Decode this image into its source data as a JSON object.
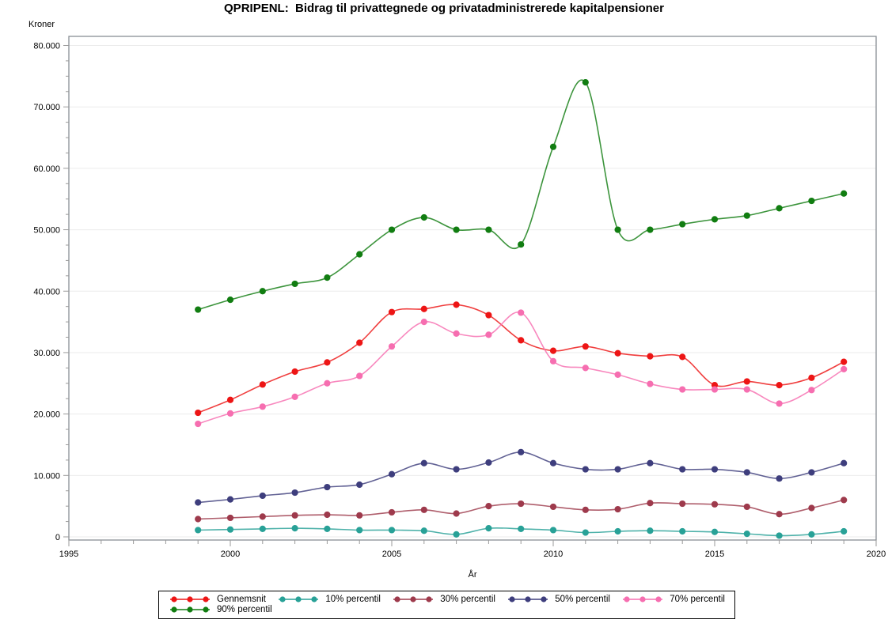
{
  "title": "QPRIPENL:  Bidrag til privattegnede og privatadministrerede kapitalpensioner",
  "chart_data": {
    "type": "line",
    "title": "QPRIPENL:  Bidrag til privattegnede og privatadministrerede kapitalpensioner",
    "ylabel": "Kroner",
    "xlabel": "År",
    "xlim": [
      1995,
      2020
    ],
    "ylim": [
      0,
      80000
    ],
    "xtick_values": [
      1995,
      2000,
      2005,
      2010,
      2015,
      2020
    ],
    "xtick_labels": [
      "1995",
      "2000",
      "2005",
      "2010",
      "2015",
      "2020"
    ],
    "ytick_values": [
      0,
      10000,
      20000,
      30000,
      40000,
      50000,
      60000,
      70000,
      80000
    ],
    "ytick_labels": [
      "0",
      "10.000",
      "20.000",
      "30.000",
      "40.000",
      "50.000",
      "60.000",
      "70.000",
      "80.000"
    ],
    "minor_y_step": 2500,
    "minor_x_step": 1,
    "grid": "horizontal",
    "legend_position": "bottom",
    "x": [
      1999,
      2000,
      2001,
      2002,
      2003,
      2004,
      2005,
      2006,
      2007,
      2008,
      2009,
      2010,
      2011,
      2012,
      2013,
      2014,
      2015,
      2016,
      2017,
      2018,
      2019
    ],
    "series": [
      {
        "name": "Gennemsnit",
        "color": "#ed1515",
        "values": [
          20200,
          22300,
          24800,
          26900,
          28400,
          31600,
          36600,
          37100,
          37800,
          36100,
          32000,
          30300,
          31000,
          29900,
          29400,
          29300,
          24700,
          25300,
          24700,
          25900,
          28500
        ]
      },
      {
        "name": "10% percentil",
        "color": "#28a197",
        "values": [
          1100,
          1200,
          1300,
          1400,
          1300,
          1100,
          1100,
          1000,
          400,
          1400,
          1300,
          1100,
          700,
          900,
          1000,
          900,
          800,
          500,
          200,
          400,
          900
        ]
      },
      {
        "name": "30% percentil",
        "color": "#9e3a4c",
        "values": [
          2900,
          3100,
          3300,
          3500,
          3600,
          3500,
          4000,
          4400,
          3800,
          5000,
          5400,
          4900,
          4400,
          4500,
          5500,
          5400,
          5300,
          4900,
          3700,
          4700,
          6000
        ]
      },
      {
        "name": "50% percentil",
        "color": "#3e3e7d",
        "values": [
          5600,
          6100,
          6700,
          7200,
          8100,
          8500,
          10200,
          12000,
          11000,
          12100,
          13800,
          12000,
          11000,
          11000,
          12000,
          11000,
          11000,
          10500,
          9500,
          10500,
          12000
        ]
      },
      {
        "name": "70% percentil",
        "color": "#f66eb0",
        "values": [
          18400,
          20100,
          21200,
          22800,
          25000,
          26200,
          31000,
          35000,
          33100,
          32900,
          36500,
          28600,
          27500,
          26400,
          24900,
          24000,
          24000,
          24000,
          21700,
          23900,
          27300
        ]
      },
      {
        "name": "90% percentil",
        "color": "#117d11",
        "values": [
          37000,
          38600,
          40000,
          41200,
          42200,
          46000,
          50000,
          52000,
          50000,
          50000,
          47600,
          63500,
          74000,
          50000,
          50000,
          50900,
          51700,
          52300,
          53500,
          54700,
          55900
        ]
      }
    ]
  }
}
